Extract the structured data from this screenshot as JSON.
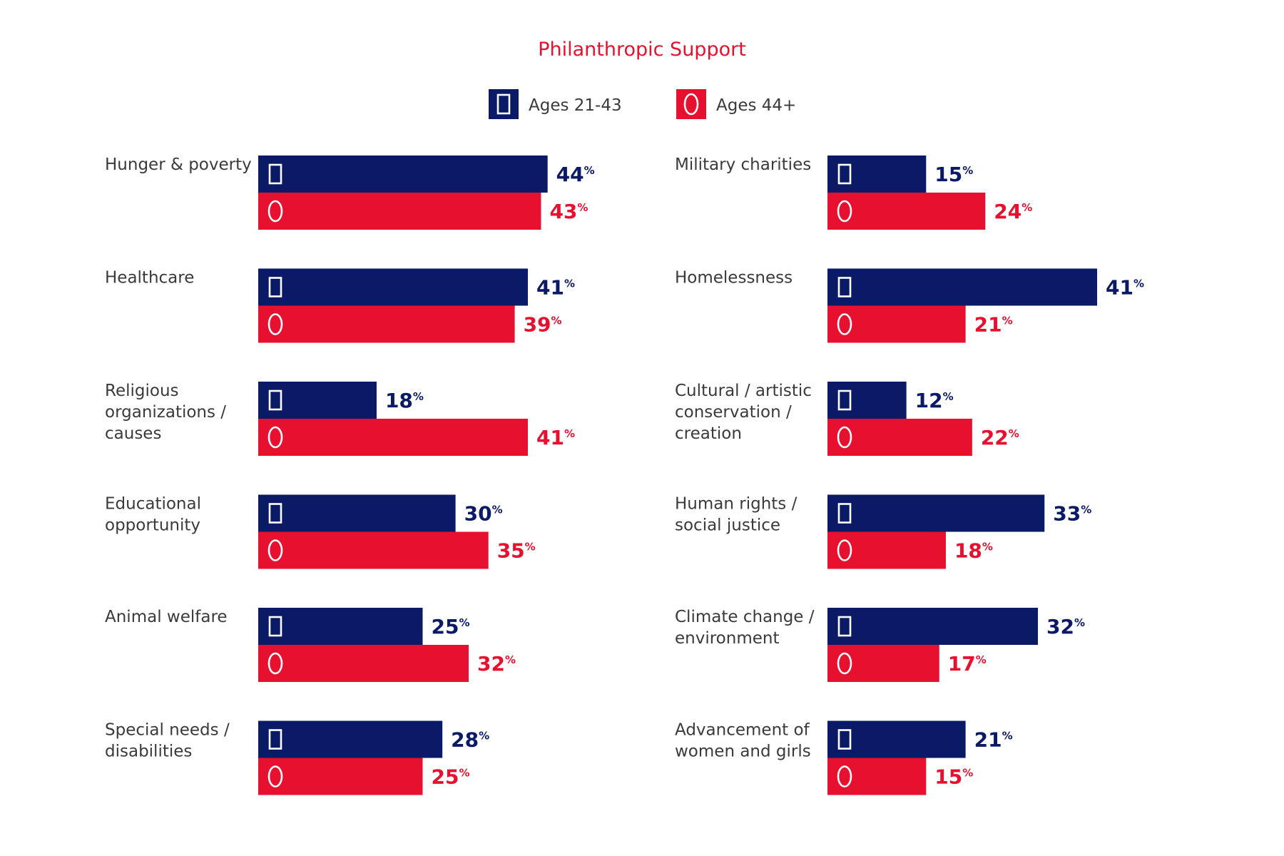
{
  "chart_data": {
    "type": "bar",
    "orientation": "horizontal",
    "title": "Philanthropic Support",
    "legend_position": "top-center",
    "grid": false,
    "value_suffix": "%",
    "xlim": [
      0,
      50
    ],
    "series": [
      {
        "name": "Ages 21-43",
        "color": "#0b1a66",
        "legend_icon": "rectangle-icon"
      },
      {
        "name": "Ages 44+",
        "color": "#e8102f",
        "legend_icon": "oval-icon"
      }
    ],
    "panels": [
      {
        "categories": [
          {
            "label_lines": [
              "Hunger & poverty"
            ],
            "values": [
              44,
              43
            ]
          },
          {
            "label_lines": [
              "Healthcare"
            ],
            "values": [
              41,
              39
            ]
          },
          {
            "label_lines": [
              "Religious",
              "organizations /",
              "causes"
            ],
            "values": [
              18,
              41
            ]
          },
          {
            "label_lines": [
              "Educational",
              "opportunity"
            ],
            "values": [
              30,
              35
            ]
          },
          {
            "label_lines": [
              "Animal welfare"
            ],
            "values": [
              25,
              32
            ]
          },
          {
            "label_lines": [
              "Special needs /",
              "disabilities"
            ],
            "values": [
              28,
              25
            ]
          }
        ]
      },
      {
        "categories": [
          {
            "label_lines": [
              "Military charities"
            ],
            "values": [
              15,
              24
            ]
          },
          {
            "label_lines": [
              "Homelessness"
            ],
            "values": [
              41,
              21
            ]
          },
          {
            "label_lines": [
              "Cultural / artistic",
              "conservation /",
              "creation"
            ],
            "values": [
              12,
              22
            ]
          },
          {
            "label_lines": [
              "Human rights /",
              "social justice"
            ],
            "values": [
              33,
              18
            ]
          },
          {
            "label_lines": [
              "Climate change /",
              "environment"
            ],
            "values": [
              32,
              17
            ]
          },
          {
            "label_lines": [
              "Advancement of",
              "women and girls"
            ],
            "values": [
              21,
              15
            ]
          }
        ]
      }
    ]
  }
}
